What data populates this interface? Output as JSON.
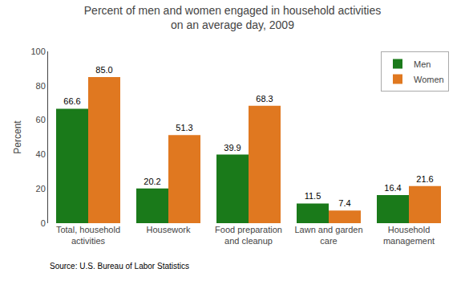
{
  "chart_data": {
    "type": "bar",
    "title": "Percent of men and women engaged in household activities\non an average day, 2009",
    "categories": [
      "Total, household\nactivities",
      "Housework",
      "Food preparation\nand cleanup",
      "Lawn and garden\ncare",
      "Household\nmanagement"
    ],
    "series": [
      {
        "name": "Men",
        "color": "#1a7a1a",
        "values": [
          66.6,
          20.2,
          39.9,
          11.5,
          16.4
        ],
        "value_labels": [
          "66.6",
          "20.2",
          "39.9",
          "11.5",
          "16.4"
        ]
      },
      {
        "name": "Women",
        "color": "#e07820",
        "values": [
          85.0,
          51.3,
          68.3,
          7.4,
          21.6
        ],
        "value_labels": [
          "85.0",
          "51.3",
          "68.3",
          "7.4",
          "21.6"
        ]
      }
    ],
    "ylabel": "Percent",
    "ylim": [
      0,
      100
    ],
    "yticks": [
      0,
      20,
      40,
      60,
      80,
      100
    ],
    "grid": false,
    "legend": "upper right",
    "data_labels": true,
    "annotations": [
      "Source: U.S. Bureau of Labor Statistics"
    ]
  }
}
